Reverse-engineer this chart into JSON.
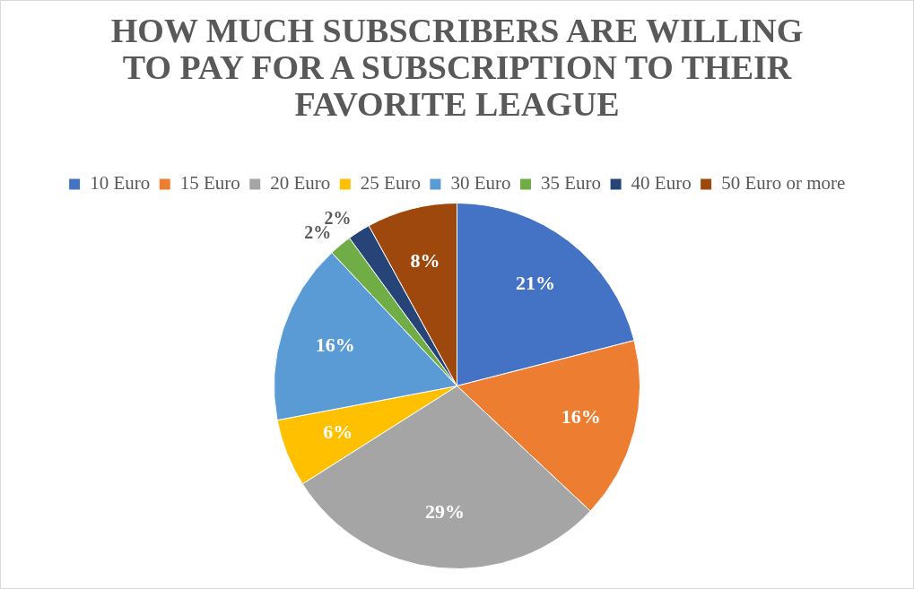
{
  "chart_data": {
    "type": "pie",
    "title": "HOW MUCH SUBSCRIBERS ARE WILLING TO PAY FOR A SUBSCRIPTION TO THEIR FAVORITE LEAGUE",
    "categories": [
      "10 Euro",
      "15 Euro",
      "20 Euro",
      "25 Euro",
      "30 Euro",
      "35 Euro",
      "40 Euro",
      "50 Euro or more"
    ],
    "values": [
      21,
      16,
      29,
      6,
      16,
      2,
      2,
      8
    ],
    "colors": [
      "#4472c4",
      "#ed7d31",
      "#a5a5a5",
      "#ffc000",
      "#5b9bd5",
      "#70ad47",
      "#264478",
      "#9e480e"
    ],
    "value_labels": [
      "21%",
      "16%",
      "29%",
      "6%",
      "16%",
      "2%",
      "2%",
      "8%"
    ],
    "legend": "top"
  }
}
